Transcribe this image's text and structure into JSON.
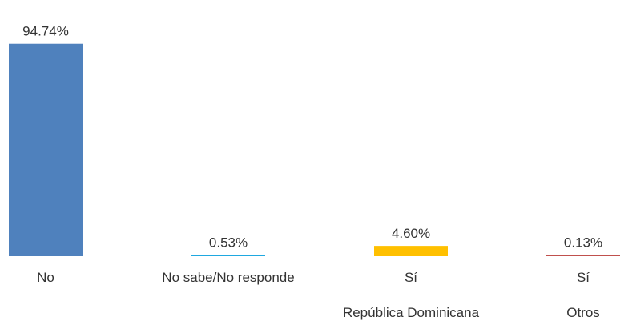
{
  "chart_data": {
    "type": "bar",
    "title": "",
    "xlabel": "",
    "ylabel": "",
    "categories": [
      [
        "No"
      ],
      [
        "No sabe/No responde"
      ],
      [
        "Sí",
        "República Dominicana"
      ],
      [
        "Sí",
        "Otros"
      ]
    ],
    "values": [
      94.74,
      0.53,
      4.6,
      0.13
    ],
    "data_labels": [
      "94.74%",
      "0.53%",
      "4.60%",
      "0.13%"
    ],
    "colors": [
      "#4f81bd",
      "#1fa8e0",
      "#ffc000",
      "#c0504d"
    ],
    "ylim": [
      0,
      100
    ],
    "grid": false,
    "legend": "none"
  }
}
